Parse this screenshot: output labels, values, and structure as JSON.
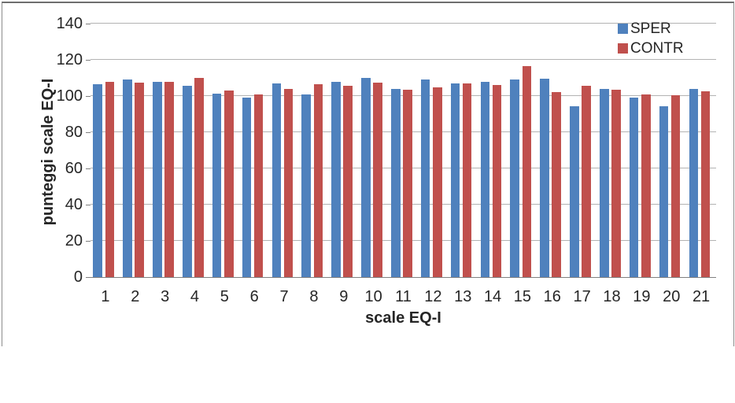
{
  "chart_data": {
    "type": "bar",
    "title": "",
    "xlabel": "scale EQ-I",
    "ylabel": "punteggi scale EQ-I",
    "categories": [
      "1",
      "2",
      "3",
      "4",
      "5",
      "6",
      "7",
      "8",
      "9",
      "10",
      "11",
      "12",
      "13",
      "14",
      "15",
      "16",
      "17",
      "18",
      "19",
      "20",
      "21"
    ],
    "series": [
      {
        "name": "SPER",
        "color": "#4F81BD",
        "values": [
          106.5,
          109,
          108,
          105.5,
          101.5,
          99,
          107,
          101,
          108,
          110,
          104,
          109,
          107,
          108,
          109,
          109.5,
          94.5,
          104,
          99,
          94.5,
          104
        ]
      },
      {
        "name": "CONTR",
        "color": "#C0504D",
        "values": [
          108,
          107.5,
          108,
          110,
          103,
          101,
          104,
          106.5,
          105.5,
          107.5,
          103.5,
          105,
          107,
          106,
          116.5,
          102,
          105.5,
          103.5,
          101,
          100.5,
          102.5
        ]
      }
    ],
    "ylim": [
      0,
      140
    ],
    "yticks": [
      0,
      20,
      40,
      60,
      80,
      100,
      120,
      140
    ],
    "grid": "horizontal",
    "legend_position": "top-right",
    "colors": {
      "gridline": "#b3b3b3",
      "axis": "#7f7f7f",
      "text": "#262626",
      "background": "#ffffff"
    }
  }
}
